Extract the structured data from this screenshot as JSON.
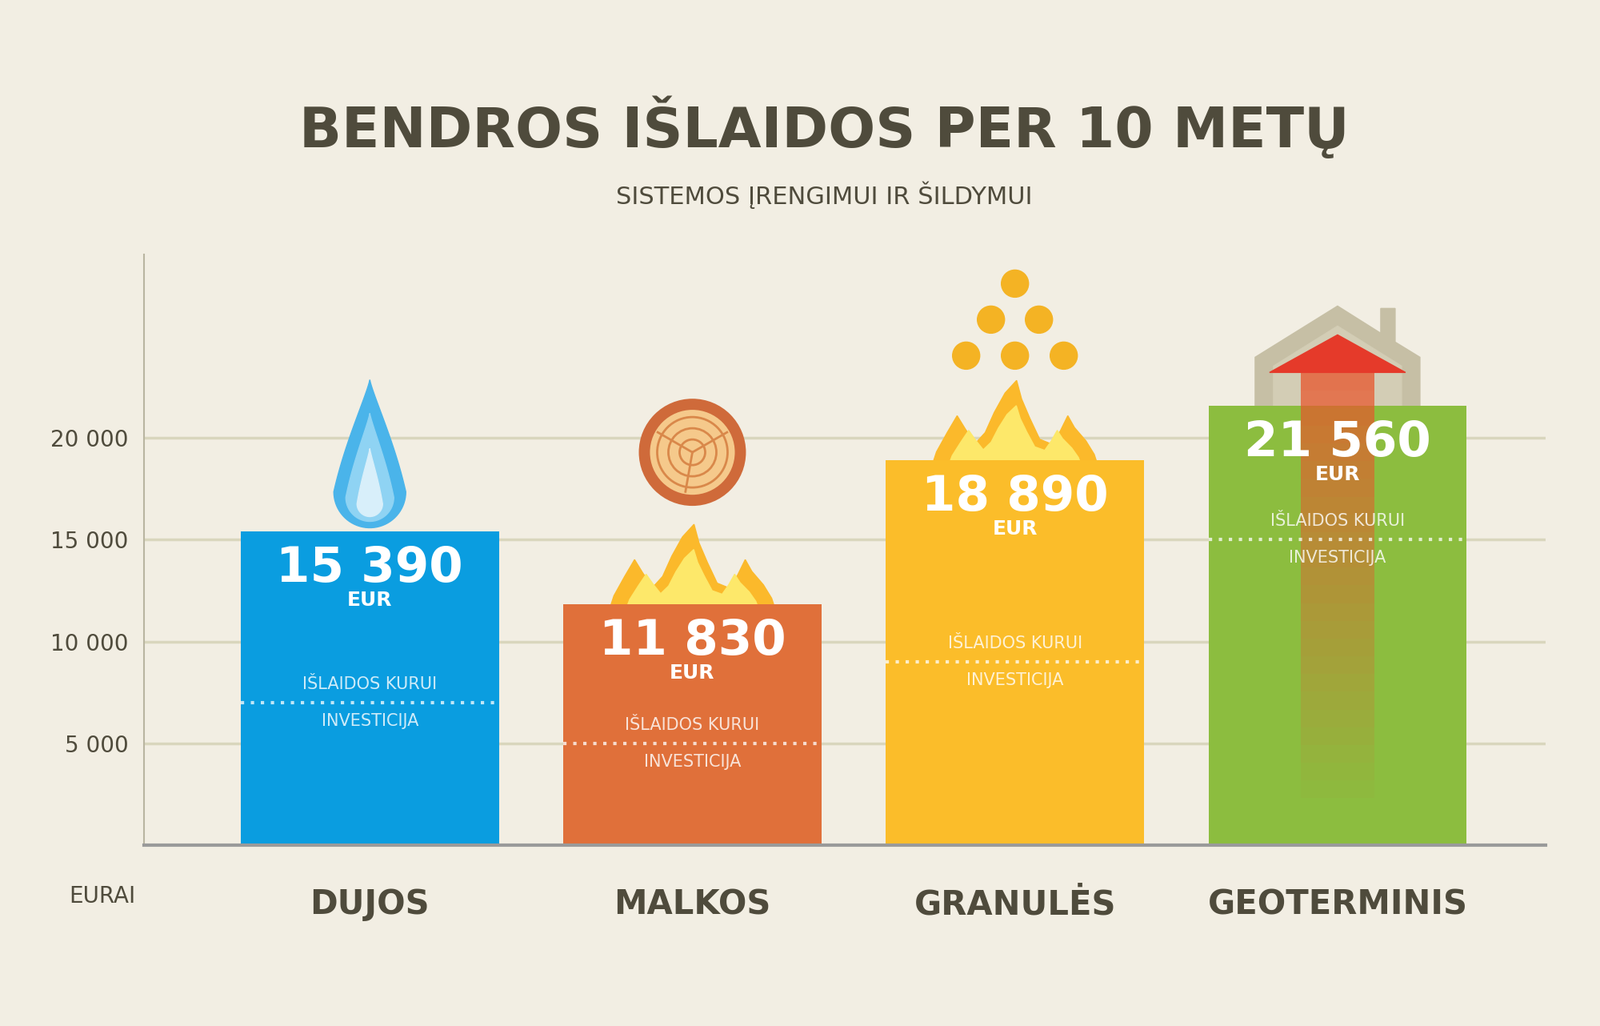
{
  "chart_data": {
    "type": "bar",
    "title": "BENDROS IŠLAIDOS PER 10 METŲ",
    "subtitle": "SISTEMOS ĮRENGIMUI IR ŠILDYMUI",
    "y_label": "EURAI",
    "categories": [
      "DUJOS",
      "MALKOS",
      "GRANULĖS",
      "GEOTERMINIS"
    ],
    "values": [
      15390,
      11830,
      18890,
      21560
    ],
    "value_labels": [
      "15 390",
      "11 830",
      "18 890",
      "21 560"
    ],
    "unit_label": "EUR",
    "investment_values": [
      7000,
      5000,
      9000,
      15000
    ],
    "upper_label": "IŠLAIDOS KURUI",
    "lower_label": "INVESTICIJA",
    "colors": [
      "#0a9de0",
      "#e0703a",
      "#fbbd2a",
      "#8cbd3f"
    ],
    "ylim": [
      0,
      29000
    ],
    "yticks": [
      {
        "value": 5000,
        "label": "5 000"
      },
      {
        "value": 10000,
        "label": "10 000"
      },
      {
        "value": 15000,
        "label": "15 000"
      },
      {
        "value": 20000,
        "label": "20 000"
      }
    ],
    "grid": true,
    "data_labels": true
  }
}
